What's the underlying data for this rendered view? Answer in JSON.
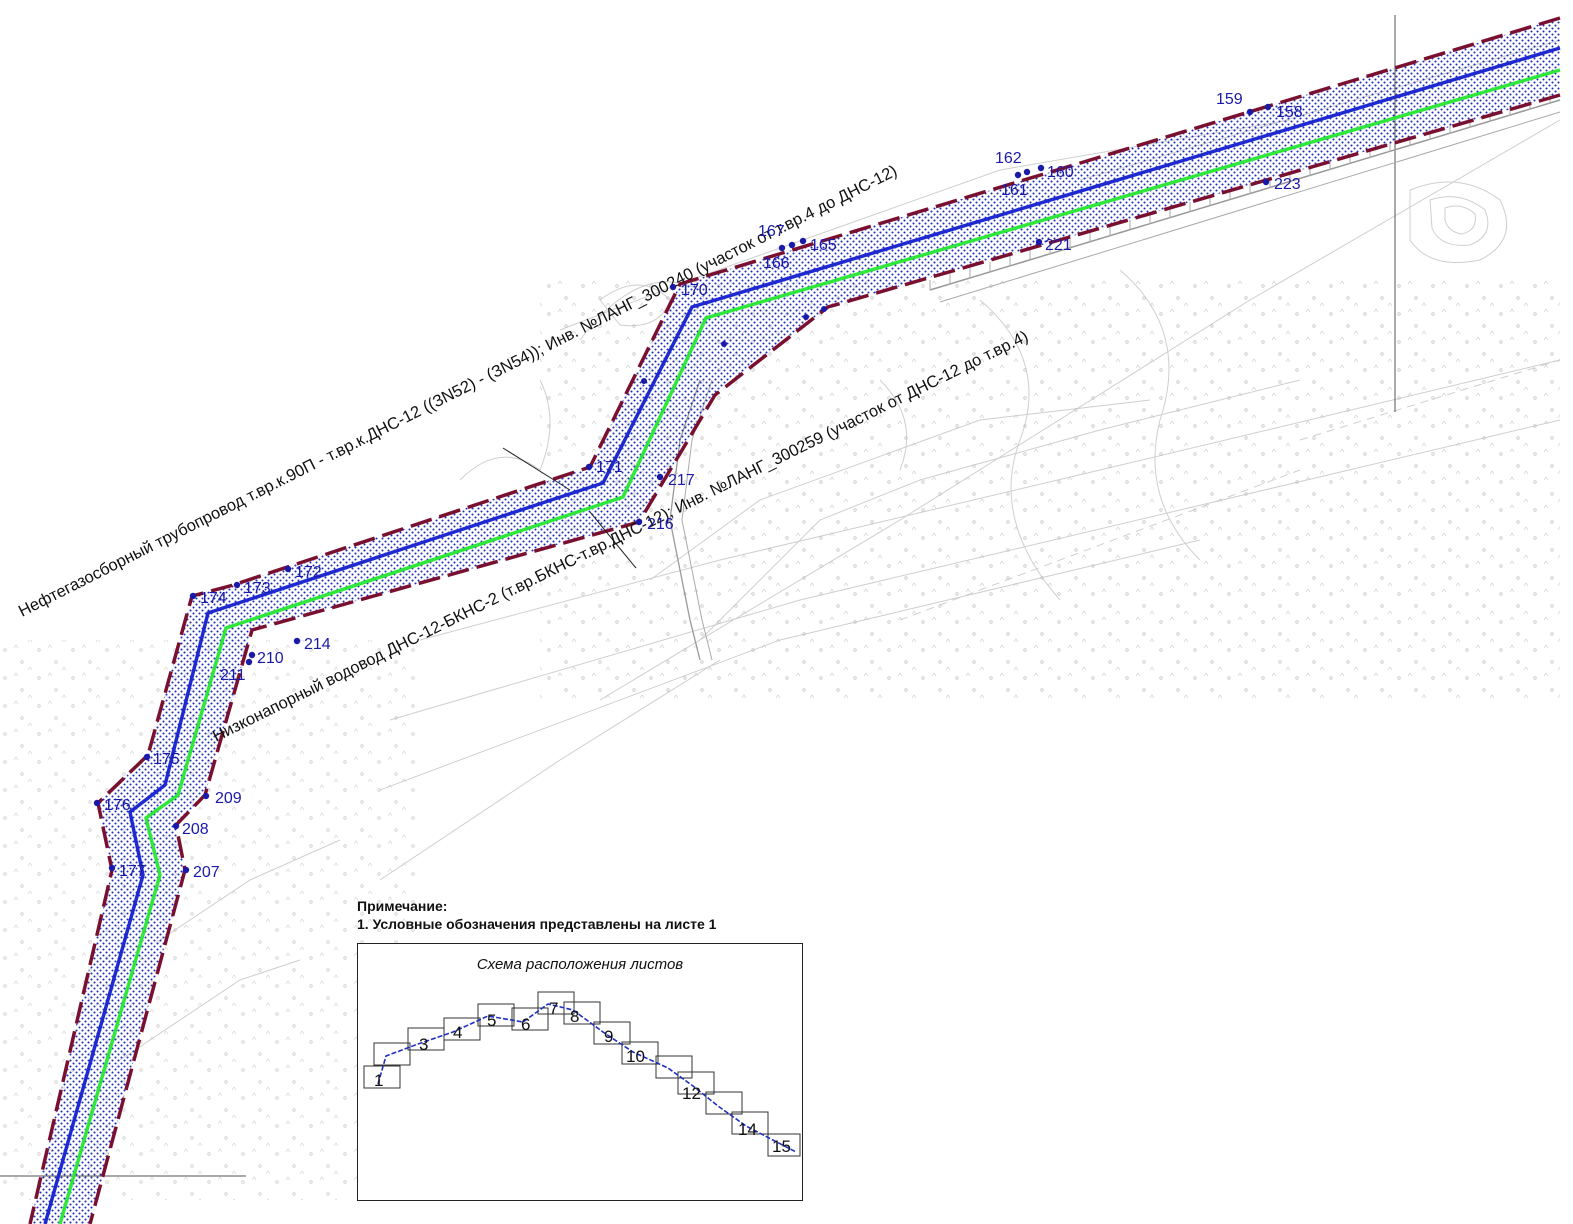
{
  "colors": {
    "oil_pipeline": "#1e2ad0",
    "water_pipeline": "#2fe63a",
    "zone_boundary": "#7a1030",
    "zone_dots": "#1a2bb8",
    "survey_linework": "#c9c9c9",
    "point_label": "#1a1aa8"
  },
  "pipelines": {
    "oil_label": "Нефтегазосборный трубопровод т.вр.к.90П - т.вр.к.ДНС-12 ((ЗN52) - (ЗN54)); Инв. №ЛАНГ_300240 (участок от т.вр.4 до ДНС-12)",
    "water_label": "Низконапорный водовод ДНС-12-БКНС-2 (т.вр.БКНС-т.вр.ДНС-12); Инв. №ЛАНГ_300259 (участок от ДНС-12 до т.вр.4)"
  },
  "points": [
    {
      "id": "p158",
      "label": "158"
    },
    {
      "id": "p159",
      "label": "159"
    },
    {
      "id": "p160",
      "label": "160"
    },
    {
      "id": "p161",
      "label": "161"
    },
    {
      "id": "p162",
      "label": "162"
    },
    {
      "id": "p165",
      "label": "165"
    },
    {
      "id": "p166",
      "label": "166"
    },
    {
      "id": "p167",
      "label": "167"
    },
    {
      "id": "p170",
      "label": "170"
    },
    {
      "id": "p171",
      "label": "171"
    },
    {
      "id": "p172",
      "label": "172"
    },
    {
      "id": "p173",
      "label": "173"
    },
    {
      "id": "p174",
      "label": "174"
    },
    {
      "id": "p175",
      "label": "175"
    },
    {
      "id": "p176",
      "label": "176"
    },
    {
      "id": "p177",
      "label": "177"
    },
    {
      "id": "p207",
      "label": "207"
    },
    {
      "id": "p208",
      "label": "208"
    },
    {
      "id": "p209",
      "label": "209"
    },
    {
      "id": "p210",
      "label": "210"
    },
    {
      "id": "p211",
      "label": "211"
    },
    {
      "id": "p214",
      "label": "214"
    },
    {
      "id": "p216",
      "label": "216"
    },
    {
      "id": "p217",
      "label": "217"
    },
    {
      "id": "p221",
      "label": "221"
    },
    {
      "id": "p223",
      "label": "223"
    }
  ],
  "note": {
    "heading": "Примечание:",
    "line1": "1. Условные обозначения представлены на листе 1"
  },
  "inset": {
    "title": "Схема расположения листов",
    "sheets": [
      "1",
      "3",
      "4",
      "5",
      "6",
      "7",
      "8",
      "9",
      "10",
      "12",
      "14",
      "15"
    ]
  }
}
